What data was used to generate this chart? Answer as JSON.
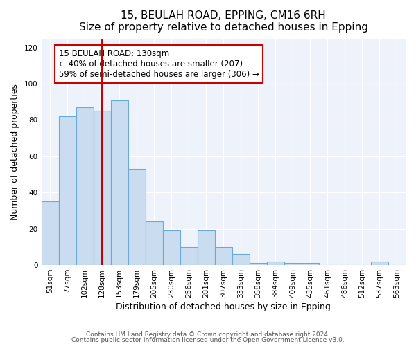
{
  "title": "15, BEULAH ROAD, EPPING, CM16 6RH",
  "subtitle": "Size of property relative to detached houses in Epping",
  "xlabel": "Distribution of detached houses by size in Epping",
  "ylabel": "Number of detached properties",
  "bar_labels": [
    "51sqm",
    "77sqm",
    "102sqm",
    "128sqm",
    "153sqm",
    "179sqm",
    "205sqm",
    "230sqm",
    "256sqm",
    "281sqm",
    "307sqm",
    "333sqm",
    "358sqm",
    "384sqm",
    "409sqm",
    "435sqm",
    "461sqm",
    "486sqm",
    "512sqm",
    "537sqm",
    "563sqm"
  ],
  "bar_values": [
    35,
    82,
    87,
    85,
    91,
    53,
    24,
    19,
    10,
    19,
    10,
    6,
    1,
    2,
    1,
    1,
    0,
    0,
    0,
    2,
    0
  ],
  "bar_color": "#c9dcf0",
  "bar_edge_color": "#6aaad4",
  "vline_x_index": 3,
  "vline_color": "#cc0000",
  "annotation_text": "15 BEULAH ROAD: 130sqm\n← 40% of detached houses are smaller (207)\n59% of semi-detached houses are larger (306) →",
  "annotation_box_color": "#ffffff",
  "annotation_box_edge": "#cc0000",
  "ylim": [
    0,
    125
  ],
  "yticks": [
    0,
    20,
    40,
    60,
    80,
    100,
    120
  ],
  "footnote1": "Contains HM Land Registry data © Crown copyright and database right 2024.",
  "footnote2": "Contains public sector information licensed under the Open Government Licence v3.0.",
  "bg_color": "#ffffff",
  "plot_bg_color": "#eef2fa",
  "title_fontsize": 11,
  "axis_label_fontsize": 9,
  "tick_fontsize": 7.5,
  "annotation_fontsize": 8.5,
  "footnote_fontsize": 6.5
}
